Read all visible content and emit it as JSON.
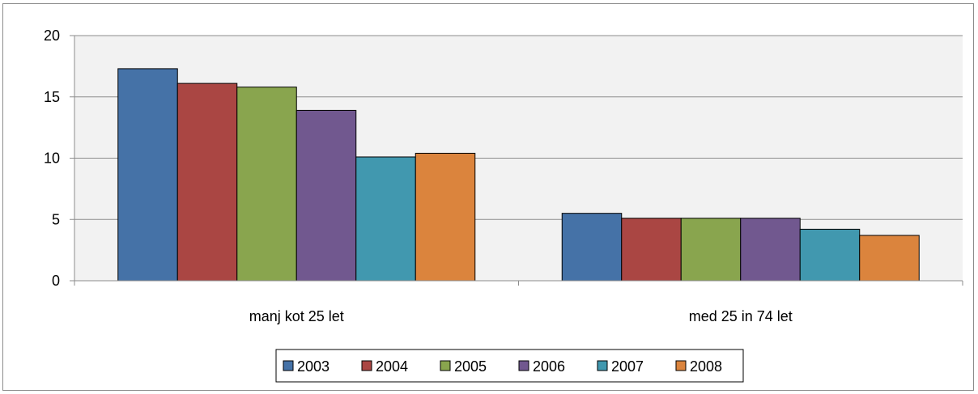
{
  "chart_data": {
    "type": "bar",
    "title": "",
    "xlabel": "",
    "ylabel": "",
    "categories": [
      "manj kot 25 let",
      "med 25 in 74 let"
    ],
    "ylim": [
      0,
      20
    ],
    "yticks": [
      0,
      5,
      10,
      15,
      20
    ],
    "grid": true,
    "legend_position": "bottom",
    "series": [
      {
        "name": "2003",
        "color": "#4572A7",
        "values": [
          17.3,
          5.5
        ]
      },
      {
        "name": "2004",
        "color": "#AA4643",
        "values": [
          16.1,
          5.1
        ]
      },
      {
        "name": "2005",
        "color": "#89A54E",
        "values": [
          15.8,
          5.1
        ]
      },
      {
        "name": "2006",
        "color": "#71588F",
        "values": [
          13.9,
          5.1
        ]
      },
      {
        "name": "2007",
        "color": "#4198AF",
        "values": [
          10.1,
          4.2
        ]
      },
      {
        "name": "2008",
        "color": "#DB843D",
        "values": [
          10.4,
          3.7
        ]
      }
    ]
  }
}
